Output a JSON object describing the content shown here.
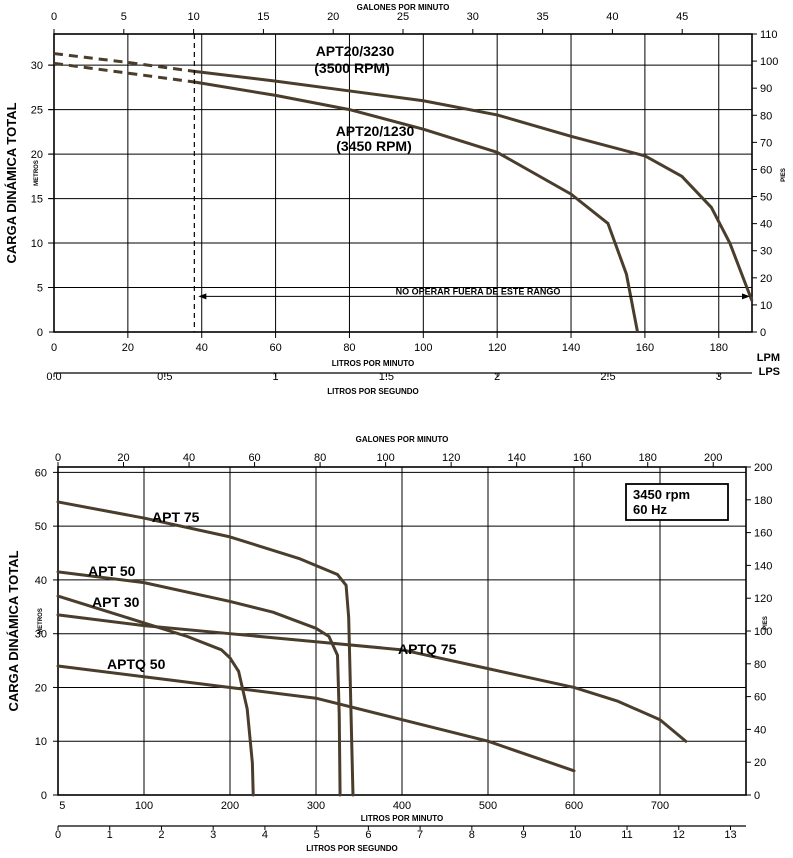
{
  "chart_data": [
    {
      "type": "line",
      "top_axis": {
        "label": "GALONES POR MINUTO",
        "ticks": [
          0,
          5,
          10,
          15,
          20,
          25,
          30,
          35,
          40,
          45
        ],
        "range": [
          0,
          50
        ]
      },
      "bottom_axis": {
        "label": "LITROS POR MINUTO",
        "unit": "LPM",
        "ticks": [
          0,
          20,
          40,
          60,
          80,
          100,
          120,
          140,
          160,
          180
        ],
        "range": [
          0,
          189
        ]
      },
      "bottom_axis2": {
        "label": "LITROS POR SEGUNDO",
        "unit": "LPS",
        "ticks": [
          "0.0",
          "0.5",
          "1",
          "1.5",
          "2",
          "2.5",
          "3"
        ],
        "values": [
          0,
          0.5,
          1,
          1.5,
          2,
          2.5,
          3
        ],
        "range": [
          0,
          3.15
        ]
      },
      "left_axis": {
        "label": "CARGA DINÁMICA TOTAL",
        "unit": "METROS",
        "ticks": [
          0,
          5,
          10,
          15,
          20,
          25,
          30
        ],
        "range": [
          0,
          33.5
        ]
      },
      "right_axis": {
        "unit": "PIES",
        "ticks": [
          0,
          10,
          20,
          30,
          40,
          50,
          60,
          70,
          80,
          90,
          100,
          110
        ],
        "range": [
          0,
          110
        ]
      },
      "grid": true,
      "limit_x": 38,
      "range_note": "NO OPERAR FUERA DE ESTE RANGO",
      "series": [
        {
          "name": "APT20/3230",
          "subname": "(3500 RPM)",
          "x": [
            0,
            20,
            38,
            60,
            80,
            100,
            120,
            140,
            160,
            170,
            178,
            183,
            189
          ],
          "y": [
            31.3,
            30.3,
            29.3,
            28.2,
            27.1,
            26,
            24.4,
            22,
            19.8,
            17.5,
            14,
            10,
            3.5
          ]
        },
        {
          "name": "APT20/1230",
          "subname": "(3450 RPM)",
          "x": [
            0,
            20,
            38,
            60,
            80,
            100,
            120,
            140,
            150,
            155,
            158
          ],
          "y": [
            30.2,
            29.1,
            28.1,
            26.6,
            25,
            22.8,
            20.2,
            15.5,
            12.2,
            6.5,
            0
          ]
        }
      ]
    },
    {
      "type": "line",
      "top_axis": {
        "label": "GALONES POR MINUTO",
        "ticks": [
          0,
          20,
          40,
          60,
          80,
          100,
          120,
          140,
          160,
          180,
          200
        ],
        "range": [
          0,
          210
        ]
      },
      "bottom_axis": {
        "label": "LITROS POR MINUTO",
        "ticks": [
          5,
          100,
          200,
          300,
          400,
          500,
          600,
          700
        ],
        "range": [
          0,
          800
        ]
      },
      "bottom_axis2": {
        "label": "LITROS POR SEGUNDO",
        "ticks": [
          0,
          1,
          2,
          3,
          4,
          5,
          6,
          7,
          8,
          9,
          10,
          11,
          12,
          13
        ],
        "range": [
          0,
          13.3
        ]
      },
      "left_axis": {
        "label": "CARGA DINÁMICA TOTAL",
        "unit": "METROS",
        "ticks": [
          0,
          10,
          20,
          30,
          40,
          50,
          60
        ],
        "range": [
          0,
          61
        ]
      },
      "right_axis": {
        "unit": "PIES",
        "ticks": [
          0,
          20,
          40,
          60,
          80,
          100,
          120,
          140,
          160,
          180,
          200
        ],
        "range": [
          0,
          200
        ]
      },
      "grid": true,
      "legend_box": [
        "3450 rpm",
        "60 Hz"
      ],
      "series": [
        {
          "name": "APT 75",
          "x": [
            0,
            100,
            200,
            280,
            310,
            325,
            335,
            338,
            340,
            343
          ],
          "y": [
            54.5,
            51.5,
            48,
            44,
            42,
            41,
            39,
            33,
            20,
            0
          ]
        },
        {
          "name": "APT 50",
          "x": [
            0,
            100,
            200,
            250,
            300,
            315,
            325,
            327,
            328
          ],
          "y": [
            41.5,
            39.5,
            36,
            34,
            31,
            29.5,
            26,
            15,
            0
          ]
        },
        {
          "name": "APT 30",
          "x": [
            0,
            60,
            100,
            150,
            190,
            200,
            210,
            220,
            226,
            227
          ],
          "y": [
            37,
            34,
            32,
            29.5,
            27,
            25.5,
            23,
            16,
            6,
            0
          ]
        },
        {
          "name": "APTQ 75",
          "x": [
            0,
            100,
            200,
            300,
            400,
            500,
            600,
            650,
            700,
            730
          ],
          "y": [
            33.5,
            31.5,
            30,
            28.5,
            27,
            23.5,
            20,
            17.5,
            14,
            10
          ]
        },
        {
          "name": "APTQ 50",
          "x": [
            0,
            100,
            200,
            300,
            400,
            500,
            600
          ],
          "y": [
            24,
            22,
            20,
            18,
            14,
            10,
            4.5
          ]
        }
      ]
    }
  ]
}
